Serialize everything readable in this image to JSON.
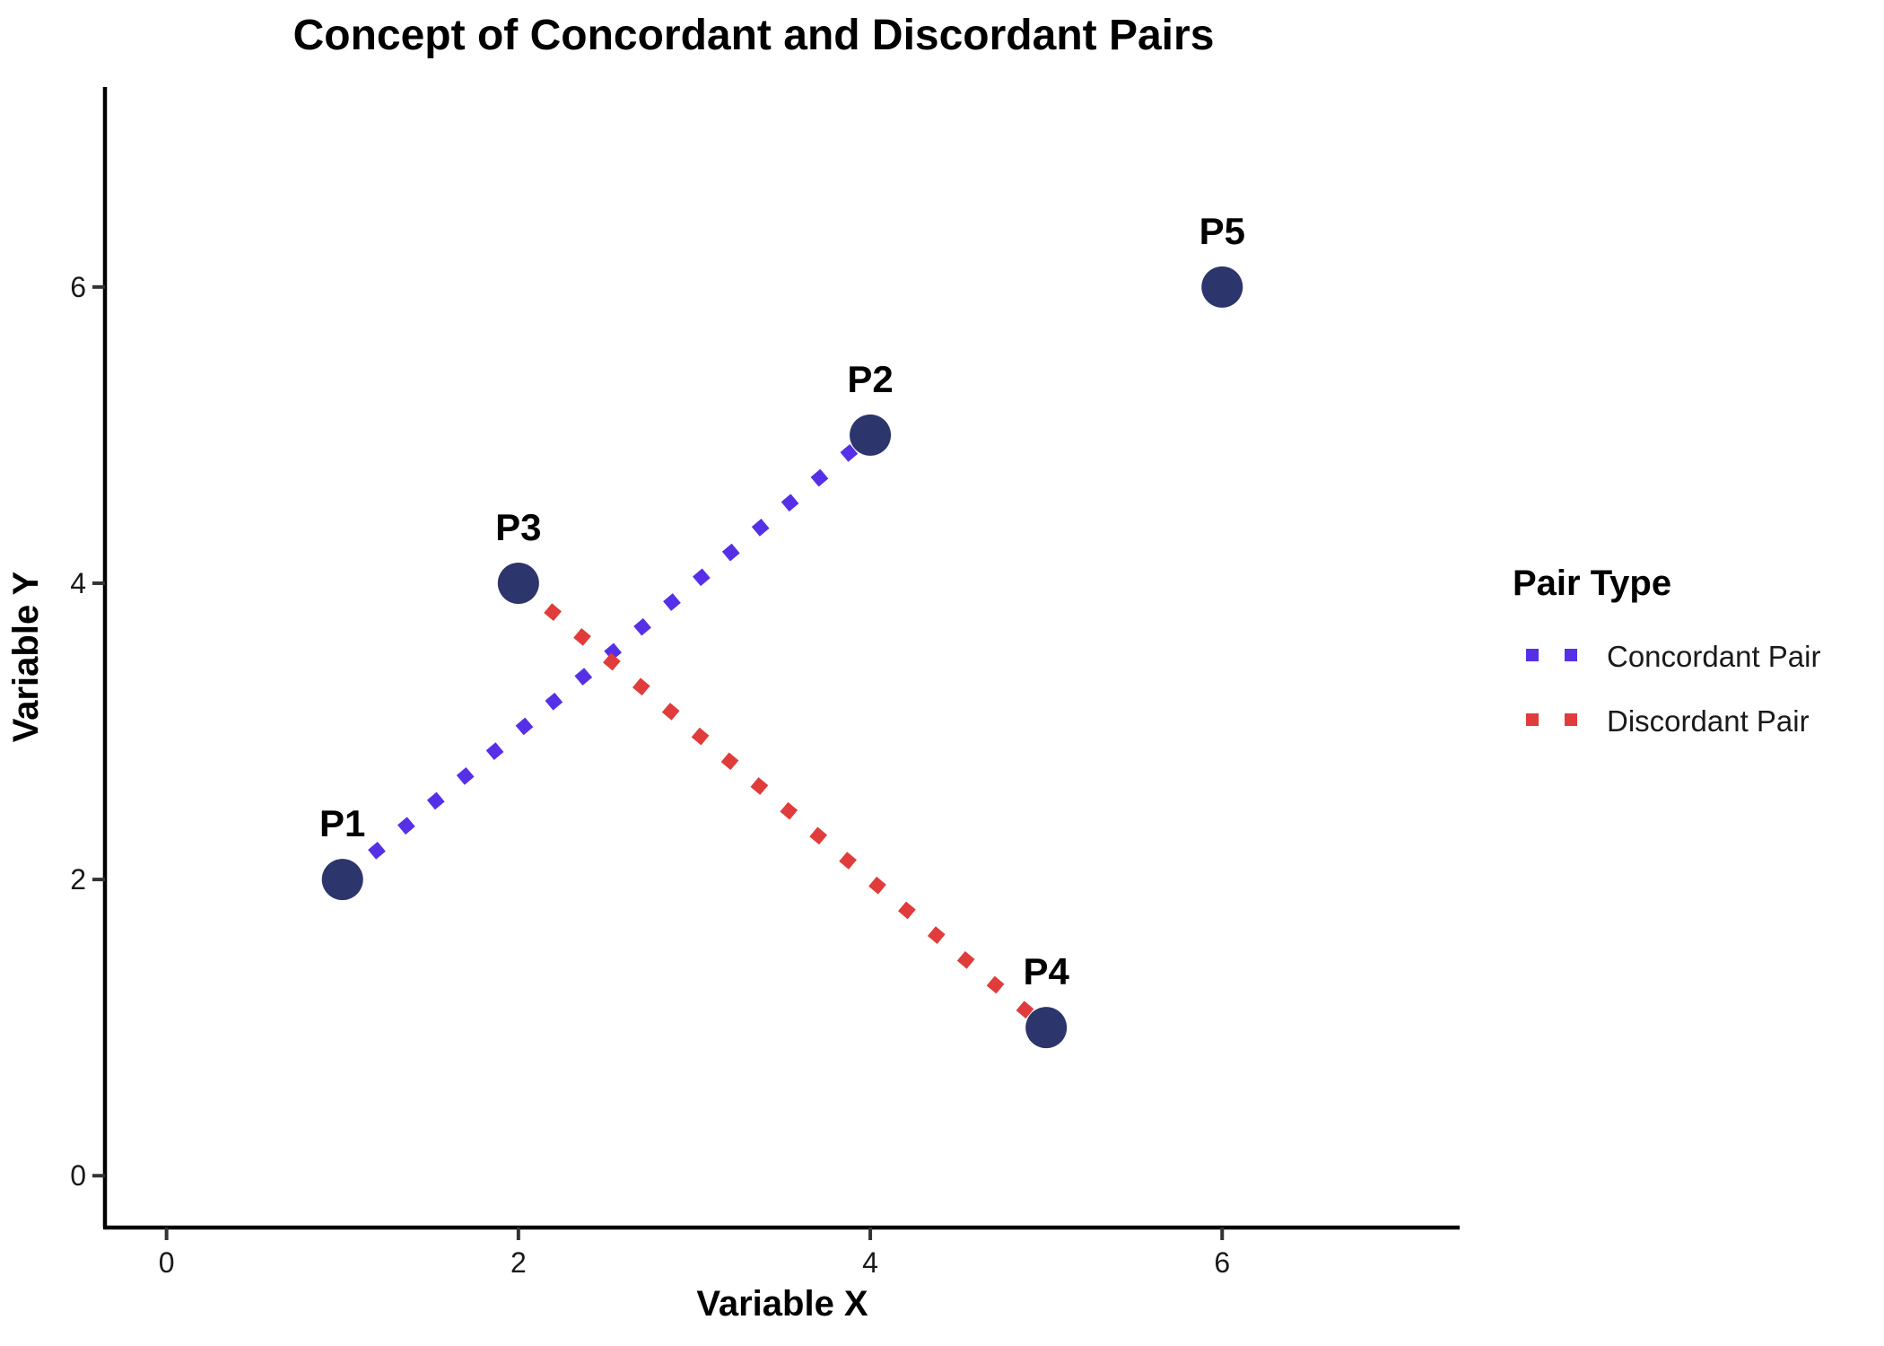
{
  "chart_data": {
    "type": "scatter",
    "title": "Concept of Concordant and Discordant Pairs",
    "xlabel": "Variable X",
    "ylabel": "Variable Y",
    "xlim": [
      -0.35,
      7.35
    ],
    "ylim": [
      -0.35,
      7.35
    ],
    "xticks": [
      0,
      2,
      4,
      6
    ],
    "yticks": [
      0,
      2,
      4,
      6
    ],
    "grid": false,
    "point_color": "#2C356C",
    "points": [
      {
        "label": "P1",
        "x": 1,
        "y": 2
      },
      {
        "label": "P2",
        "x": 4,
        "y": 5
      },
      {
        "label": "P3",
        "x": 2,
        "y": 4
      },
      {
        "label": "P4",
        "x": 5,
        "y": 1
      },
      {
        "label": "P5",
        "x": 6,
        "y": 6
      }
    ],
    "segments": [
      {
        "type": "Concordant Pair",
        "from": "P1",
        "to": "P2",
        "color": "#5630E6",
        "linestyle": "dotted"
      },
      {
        "type": "Discordant Pair",
        "from": "P3",
        "to": "P4",
        "color": "#E03C3C",
        "linestyle": "dotted"
      }
    ],
    "legend": {
      "title": "Pair Type",
      "position": "right",
      "entries": [
        {
          "label": "Concordant Pair",
          "color": "#5630E6",
          "linestyle": "dotted"
        },
        {
          "label": "Discordant Pair",
          "color": "#E03C3C",
          "linestyle": "dotted"
        }
      ]
    }
  }
}
